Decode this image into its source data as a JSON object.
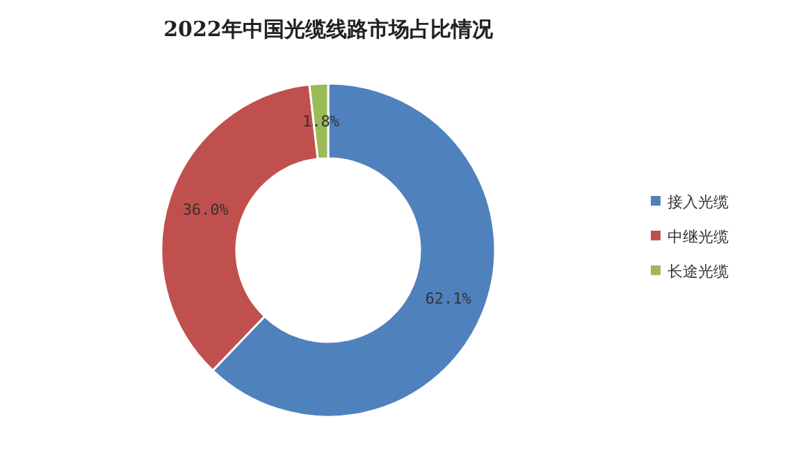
{
  "chart_data": {
    "type": "donut",
    "title": "2022年中国光缆线路市场占比情况",
    "categories": [
      "接入光缆",
      "中继光缆",
      "长途光缆"
    ],
    "values": [
      62.1,
      36.0,
      1.8
    ],
    "colors": [
      "#4f81bd",
      "#c0504d",
      "#9bbb59"
    ],
    "value_labels": [
      "62.1%",
      "36.0%",
      "1.8%"
    ],
    "legend": "right"
  }
}
